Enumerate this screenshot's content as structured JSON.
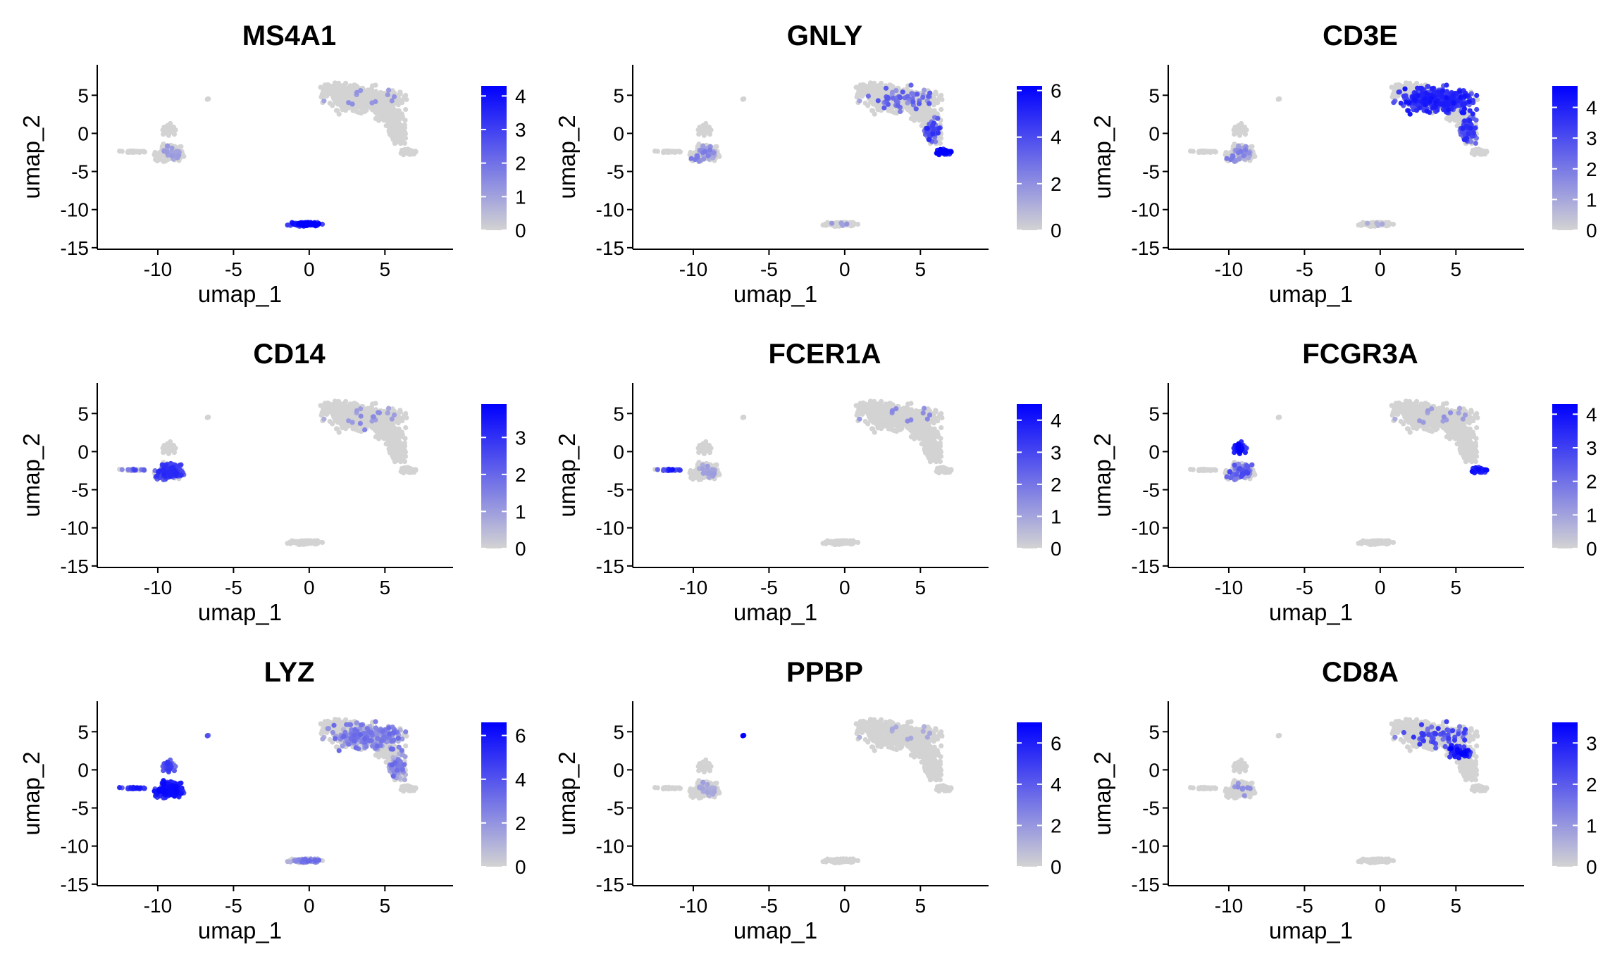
{
  "chart_data": [
    {
      "type": "scatter",
      "title": "MS4A1",
      "xlabel": "umap_1",
      "ylabel": "umap_2",
      "xlim": [
        -14,
        9.5
      ],
      "ylim": [
        -15.2,
        9
      ],
      "xticks": [
        -10,
        -5,
        0,
        5
      ],
      "yticks": [
        5,
        0,
        -5,
        -10,
        -15
      ],
      "grid": false,
      "legend": "right",
      "color_low": "#d3d3d3",
      "color_high": "#0000ff",
      "colorbar_max": 4.3,
      "colorbar_ticks": [
        0,
        1,
        2,
        3,
        4
      ],
      "hotspots": [
        {
          "cluster": "b_cell",
          "level": 0.85,
          "density": 0.95
        },
        {
          "cluster": "t_main",
          "level": 0.45,
          "density": 0.04
        },
        {
          "cluster": "mono",
          "level": 0.4,
          "density": 0.04
        }
      ]
    },
    {
      "type": "scatter",
      "title": "GNLY",
      "xlabel": "umap_1",
      "ylabel": "umap_2",
      "xlim": [
        -14,
        9.5
      ],
      "ylim": [
        -15.2,
        9
      ],
      "xticks": [
        -10,
        -5,
        0,
        5
      ],
      "yticks": [
        5,
        0,
        -5,
        -10,
        -15
      ],
      "grid": false,
      "legend": "right",
      "color_low": "#d3d3d3",
      "color_high": "#0000ff",
      "colorbar_max": 6.2,
      "colorbar_ticks": [
        0,
        2,
        4,
        6
      ],
      "hotspots": [
        {
          "cluster": "nk",
          "level": 0.85,
          "density": 0.9
        },
        {
          "cluster": "t_tail",
          "level": 0.6,
          "density": 0.35
        },
        {
          "cluster": "t_main",
          "level": 0.45,
          "density": 0.12
        },
        {
          "cluster": "mono",
          "level": 0.35,
          "density": 0.1
        },
        {
          "cluster": "b_cell",
          "level": 0.4,
          "density": 0.05
        }
      ]
    },
    {
      "type": "scatter",
      "title": "CD3E",
      "xlabel": "umap_1",
      "ylabel": "umap_2",
      "xlim": [
        -14,
        9.5
      ],
      "ylim": [
        -15.2,
        9
      ],
      "xticks": [
        -10,
        -5,
        0,
        5
      ],
      "yticks": [
        5,
        0,
        -5,
        -10,
        -15
      ],
      "grid": false,
      "legend": "right",
      "color_low": "#d3d3d3",
      "color_high": "#0000ff",
      "colorbar_max": 4.7,
      "colorbar_ticks": [
        0,
        1,
        2,
        3,
        4
      ],
      "hotspots": [
        {
          "cluster": "t_main",
          "level": 0.7,
          "density": 0.85
        },
        {
          "cluster": "t_tail",
          "level": 0.6,
          "density": 0.6
        },
        {
          "cluster": "mono",
          "level": 0.35,
          "density": 0.1
        },
        {
          "cluster": "b_cell",
          "level": 0.3,
          "density": 0.05
        }
      ]
    },
    {
      "type": "scatter",
      "title": "CD14",
      "xlabel": "umap_1",
      "ylabel": "umap_2",
      "xlim": [
        -14,
        9.5
      ],
      "ylim": [
        -15.2,
        9
      ],
      "xticks": [
        -10,
        -5,
        0,
        5
      ],
      "yticks": [
        5,
        0,
        -5,
        -10,
        -15
      ],
      "grid": false,
      "legend": "right",
      "color_low": "#d3d3d3",
      "color_high": "#0000ff",
      "colorbar_max": 3.9,
      "colorbar_ticks": [
        0,
        1,
        2,
        3
      ],
      "hotspots": [
        {
          "cluster": "mono",
          "level": 0.6,
          "density": 0.75
        },
        {
          "cluster": "mono_tail",
          "level": 0.5,
          "density": 0.4
        },
        {
          "cluster": "t_main",
          "level": 0.4,
          "density": 0.06
        }
      ]
    },
    {
      "type": "scatter",
      "title": "FCER1A",
      "xlabel": "umap_1",
      "ylabel": "umap_2",
      "xlim": [
        -14,
        9.5
      ],
      "ylim": [
        -15.2,
        9
      ],
      "xticks": [
        -10,
        -5,
        0,
        5
      ],
      "yticks": [
        5,
        0,
        -5,
        -10,
        -15
      ],
      "grid": false,
      "legend": "right",
      "color_low": "#d3d3d3",
      "color_high": "#0000ff",
      "colorbar_max": 4.5,
      "colorbar_ticks": [
        0,
        1,
        2,
        3,
        4
      ],
      "hotspots": [
        {
          "cluster": "mono_tail",
          "level": 0.7,
          "density": 0.7
        },
        {
          "cluster": "t_main",
          "level": 0.5,
          "density": 0.03
        },
        {
          "cluster": "mono",
          "level": 0.4,
          "density": 0.03
        }
      ]
    },
    {
      "type": "scatter",
      "title": "FCGR3A",
      "xlabel": "umap_1",
      "ylabel": "umap_2",
      "xlim": [
        -14,
        9.5
      ],
      "ylim": [
        -15.2,
        9
      ],
      "xticks": [
        -10,
        -5,
        0,
        5
      ],
      "yticks": [
        5,
        0,
        -5,
        -10,
        -15
      ],
      "grid": false,
      "legend": "right",
      "color_low": "#d3d3d3",
      "color_high": "#0000ff",
      "colorbar_max": 4.3,
      "colorbar_ticks": [
        0,
        1,
        2,
        3,
        4
      ],
      "hotspots": [
        {
          "cluster": "mono_top",
          "level": 0.8,
          "density": 0.9
        },
        {
          "cluster": "nk",
          "level": 0.75,
          "density": 0.85
        },
        {
          "cluster": "mono",
          "level": 0.45,
          "density": 0.15
        },
        {
          "cluster": "t_main",
          "level": 0.4,
          "density": 0.05
        }
      ]
    },
    {
      "type": "scatter",
      "title": "LYZ",
      "xlabel": "umap_1",
      "ylabel": "umap_2",
      "xlim": [
        -14,
        9.5
      ],
      "ylim": [
        -15.2,
        9
      ],
      "xticks": [
        -10,
        -5,
        0,
        5
      ],
      "yticks": [
        5,
        0,
        -5,
        -10,
        -15
      ],
      "grid": false,
      "legend": "right",
      "color_low": "#d3d3d3",
      "color_high": "#0000ff",
      "colorbar_max": 6.6,
      "colorbar_ticks": [
        0,
        2,
        4,
        6
      ],
      "hotspots": [
        {
          "cluster": "mono",
          "level": 0.75,
          "density": 1.0
        },
        {
          "cluster": "mono_tail",
          "level": 0.7,
          "density": 1.0
        },
        {
          "cluster": "mono_top",
          "level": 0.55,
          "density": 0.8
        },
        {
          "cluster": "t_main",
          "level": 0.3,
          "density": 0.55
        },
        {
          "cluster": "t_tail",
          "level": 0.3,
          "density": 0.5
        },
        {
          "cluster": "b_cell",
          "level": 0.3,
          "density": 0.5
        },
        {
          "cluster": "platelet",
          "level": 0.5,
          "density": 1.0
        }
      ]
    },
    {
      "type": "scatter",
      "title": "PPBP",
      "xlabel": "umap_1",
      "ylabel": "umap_2",
      "xlim": [
        -14,
        9.5
      ],
      "ylim": [
        -15.2,
        9
      ],
      "xticks": [
        -10,
        -5,
        0,
        5
      ],
      "yticks": [
        5,
        0,
        -5,
        -10,
        -15
      ],
      "grid": false,
      "legend": "right",
      "color_low": "#d3d3d3",
      "color_high": "#0000ff",
      "colorbar_max": 7.0,
      "colorbar_ticks": [
        0,
        2,
        4,
        6
      ],
      "hotspots": [
        {
          "cluster": "platelet",
          "level": 0.95,
          "density": 1.0
        },
        {
          "cluster": "mono",
          "level": 0.35,
          "density": 0.04
        },
        {
          "cluster": "t_main",
          "level": 0.35,
          "density": 0.03
        }
      ]
    },
    {
      "type": "scatter",
      "title": "CD8A",
      "xlabel": "umap_1",
      "ylabel": "umap_2",
      "xlim": [
        -14,
        9.5
      ],
      "ylim": [
        -15.2,
        9
      ],
      "xticks": [
        -10,
        -5,
        0,
        5
      ],
      "yticks": [
        5,
        0,
        -5,
        -10,
        -15
      ],
      "grid": false,
      "legend": "right",
      "color_low": "#d3d3d3",
      "color_high": "#0000ff",
      "colorbar_max": 3.5,
      "colorbar_ticks": [
        0,
        1,
        2,
        3
      ],
      "hotspots": [
        {
          "cluster": "t_cd8",
          "level": 0.8,
          "density": 0.6
        },
        {
          "cluster": "t_main",
          "level": 0.6,
          "density": 0.12
        },
        {
          "cluster": "mono",
          "level": 0.5,
          "density": 0.02
        }
      ]
    }
  ]
}
